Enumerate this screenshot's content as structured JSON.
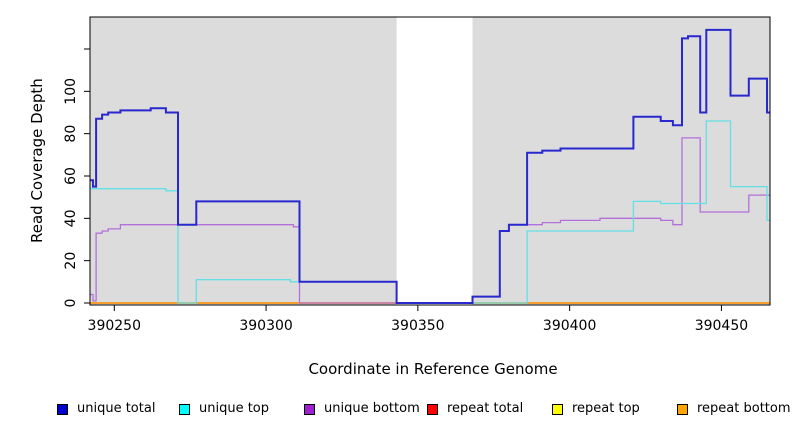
{
  "chart_data": {
    "type": "line",
    "step": true,
    "title": "",
    "xlabel": "Coordinate in Reference Genome",
    "ylabel": "Read Coverage Depth",
    "xlim": [
      390242,
      390466
    ],
    "ylim": [
      0,
      135
    ],
    "x_ticks": [
      390250,
      390300,
      390350,
      390400,
      390450
    ],
    "y_ticks": [
      0,
      20,
      40,
      60,
      80,
      100,
      120
    ],
    "y_tick_labels": [
      "0",
      "20",
      "40",
      "60",
      "80",
      "100",
      ""
    ],
    "grid": false,
    "plot_bg_color": "#dcdcdc",
    "masked_region": {
      "x0": 390343,
      "x1": 390368,
      "color": "#ffffff"
    },
    "legend_position": "bottom",
    "series": [
      {
        "name": "repeat-total",
        "label": "repeat total",
        "line_color": "#e82020",
        "legend_color": "#ff0000",
        "line_width": 1.3,
        "points": [
          [
            390242,
            0
          ]
        ]
      },
      {
        "name": "repeat-top",
        "label": "repeat top",
        "line_color": "#f2f200",
        "legend_color": "#ffff00",
        "line_width": 1.3,
        "points": [
          [
            390242,
            0
          ]
        ]
      },
      {
        "name": "repeat-bottom",
        "label": "repeat bottom",
        "line_color": "#ff9414",
        "legend_color": "#ffa500",
        "line_width": 1.6,
        "points": [
          [
            390242,
            0
          ]
        ]
      },
      {
        "name": "unique-bottom",
        "label": "unique bottom",
        "line_color": "#b470da",
        "legend_color": "#a020d0",
        "line_width": 1.3,
        "points": [
          [
            390242,
            4
          ],
          [
            390243,
            1
          ],
          [
            390244,
            33
          ],
          [
            390246,
            34
          ],
          [
            390248,
            35
          ],
          [
            390252,
            37
          ],
          [
            390309,
            36
          ],
          [
            390311,
            0
          ],
          [
            390368,
            3
          ],
          [
            390377,
            34
          ],
          [
            390380,
            37
          ],
          [
            390391,
            38
          ],
          [
            390397,
            39
          ],
          [
            390410,
            40
          ],
          [
            390430,
            39
          ],
          [
            390434,
            37
          ],
          [
            390437,
            78
          ],
          [
            390443,
            43
          ],
          [
            390459,
            51
          ]
        ]
      },
      {
        "name": "unique-top",
        "label": "unique top",
        "line_color": "#63dfe6",
        "legend_color": "#00ffff",
        "line_width": 1.3,
        "points": [
          [
            390242,
            54
          ],
          [
            390267,
            53
          ],
          [
            390271,
            0
          ],
          [
            390277,
            11
          ],
          [
            390308,
            10
          ],
          [
            390343,
            0
          ],
          [
            390386,
            34
          ],
          [
            390421,
            48
          ],
          [
            390430,
            47
          ],
          [
            390445,
            86
          ],
          [
            390453,
            55
          ],
          [
            390465,
            39
          ]
        ]
      },
      {
        "name": "unique-total",
        "label": "unique total",
        "line_color": "#2828ce",
        "legend_color": "#0000cd",
        "line_width": 2,
        "points": [
          [
            390242,
            58
          ],
          [
            390243,
            55
          ],
          [
            390244,
            87
          ],
          [
            390246,
            89
          ],
          [
            390248,
            90
          ],
          [
            390252,
            91
          ],
          [
            390262,
            92
          ],
          [
            390267,
            90
          ],
          [
            390271,
            37
          ],
          [
            390277,
            48
          ],
          [
            390311,
            10
          ],
          [
            390343,
            0
          ],
          [
            390368,
            3
          ],
          [
            390377,
            34
          ],
          [
            390380,
            37
          ],
          [
            390386,
            71
          ],
          [
            390391,
            72
          ],
          [
            390397,
            73
          ],
          [
            390421,
            88
          ],
          [
            390430,
            86
          ],
          [
            390434,
            84
          ],
          [
            390437,
            125
          ],
          [
            390439,
            126
          ],
          [
            390443,
            90
          ],
          [
            390445,
            129
          ],
          [
            390453,
            98
          ],
          [
            390459,
            106
          ],
          [
            390465,
            90
          ]
        ]
      }
    ],
    "legend_order": [
      "unique-total",
      "unique-top",
      "unique-bottom",
      "repeat-total",
      "repeat-top",
      "repeat-bottom"
    ]
  }
}
